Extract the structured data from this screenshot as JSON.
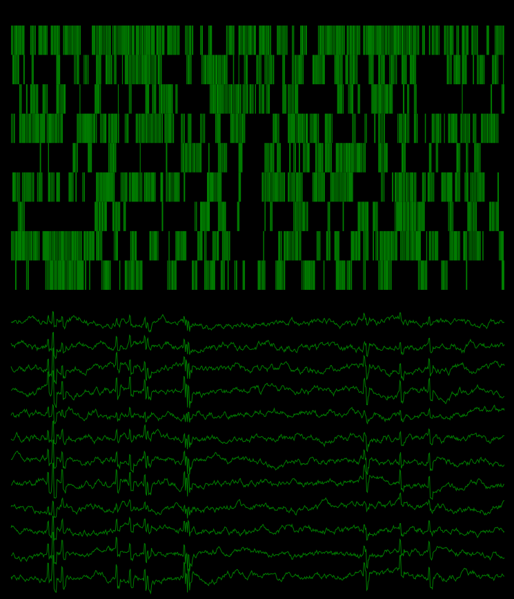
{
  "theme": {
    "background": "#000000",
    "trace_color": "#008000"
  },
  "chart_data": [
    {
      "type": "heatmap",
      "description_binary": true,
      "rows": 9,
      "time_bins": 360,
      "row_densities": [
        0.55,
        0.5,
        0.42,
        0.62,
        0.35,
        0.58,
        0.18,
        0.66,
        0.4
      ],
      "seed": 7
    },
    {
      "type": "line",
      "n_channels": 12,
      "n_samples": 700,
      "amplitude_mv": 1.0,
      "seed": 11
    }
  ]
}
